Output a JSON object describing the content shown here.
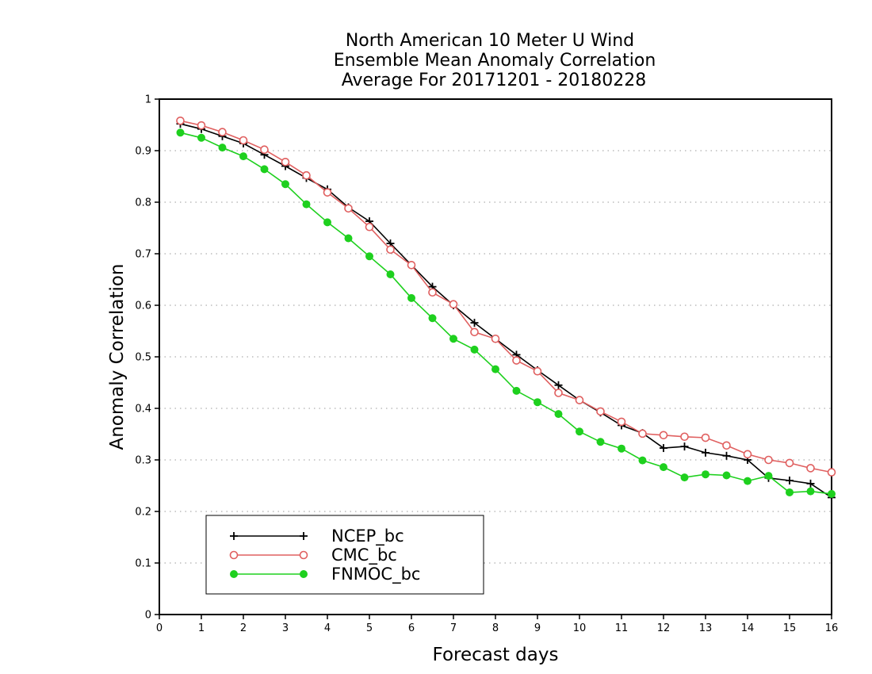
{
  "chart_data": {
    "type": "line",
    "title_lines": [
      "North American 10 Meter U Wind",
      "Ensemble Mean Anomaly Correlation",
      "Average For 20171201 - 20180228"
    ],
    "xlabel": "Forecast days",
    "ylabel": "Anomaly Correlation",
    "xlim": [
      0,
      16
    ],
    "ylim": [
      0,
      1
    ],
    "x_ticks": [
      "0",
      "1",
      "2",
      "3",
      "4",
      "5",
      "6",
      "7",
      "8",
      "9",
      "10",
      "11",
      "12",
      "13",
      "14",
      "15",
      "16"
    ],
    "y_ticks": [
      "0",
      "0.1",
      "0.2",
      "0.3",
      "0.4",
      "0.5",
      "0.6",
      "0.7",
      "0.8",
      "0.9",
      "1"
    ],
    "grid": "horizontal dotted",
    "legend_position": "bottom-left",
    "x": [
      0.5,
      1,
      1.5,
      2,
      2.5,
      3,
      3.5,
      4,
      4.5,
      5,
      5.5,
      6,
      6.5,
      7,
      7.5,
      8,
      8.5,
      9,
      9.5,
      10,
      10.5,
      11,
      11.5,
      12,
      12.5,
      13,
      13.5,
      14,
      14.5,
      15,
      15.5,
      16
    ],
    "series": [
      {
        "name": "NCEP_bc",
        "color": "#000000",
        "marker": "plus",
        "values": [
          0.952,
          0.942,
          0.928,
          0.914,
          0.892,
          0.87,
          0.847,
          0.825,
          0.79,
          0.763,
          0.72,
          0.678,
          0.636,
          0.6,
          0.566,
          0.535,
          0.504,
          0.474,
          0.445,
          0.416,
          0.392,
          0.367,
          0.352,
          0.323,
          0.326,
          0.314,
          0.308,
          0.3,
          0.265,
          0.26,
          0.254,
          0.227
        ]
      },
      {
        "name": "CMC_bc",
        "color": "#e06060",
        "marker": "open-circle",
        "values": [
          0.958,
          0.949,
          0.936,
          0.92,
          0.902,
          0.878,
          0.852,
          0.819,
          0.788,
          0.752,
          0.708,
          0.678,
          0.625,
          0.602,
          0.548,
          0.535,
          0.493,
          0.472,
          0.43,
          0.416,
          0.394,
          0.374,
          0.351,
          0.348,
          0.345,
          0.343,
          0.328,
          0.311,
          0.3,
          0.294,
          0.284,
          0.276
        ]
      },
      {
        "name": "FNMOC_bc",
        "color": "#1ed01e",
        "marker": "filled-circle",
        "values": [
          0.935,
          0.925,
          0.906,
          0.889,
          0.864,
          0.835,
          0.796,
          0.761,
          0.73,
          0.695,
          0.66,
          0.614,
          0.575,
          0.535,
          0.514,
          0.476,
          0.434,
          0.412,
          0.389,
          0.355,
          0.335,
          0.322,
          0.299,
          0.286,
          0.266,
          0.272,
          0.27,
          0.259,
          0.269,
          0.237,
          0.239,
          0.234
        ]
      }
    ]
  }
}
